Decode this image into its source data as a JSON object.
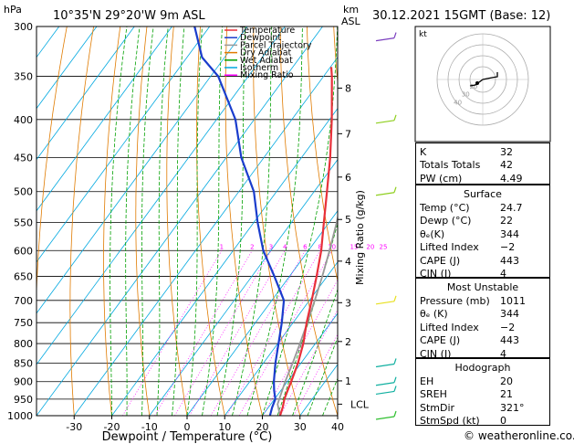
{
  "header": {
    "location": "10°35'N  29°20'W  9m  ASL",
    "datetime": "30.12.2021  15GMT  (Base: 12)",
    "hpa_unit": "hPa",
    "km_unit": "km",
    "asl_unit": "ASL"
  },
  "legend": [
    {
      "label": "Temperature",
      "color": "#e8303a"
    },
    {
      "label": "Dewpoint",
      "color": "#1a3ccc"
    },
    {
      "label": "Parcel Trajectory",
      "color": "#999999"
    },
    {
      "label": "Dry Adiabat",
      "color": "#e07b00"
    },
    {
      "label": "Wet Adiabat",
      "color": "#00a000"
    },
    {
      "label": "Isotherm",
      "color": "#00a8e0"
    },
    {
      "label": "Mixing Ratio",
      "color": "#ff00ff"
    }
  ],
  "chart_data": {
    "type": "line",
    "subtype": "skew-t log-p",
    "xlabel": "Dewpoint / Temperature (°C)",
    "ylabel_right": "Mixing Ratio (g/kg)",
    "pressure_levels": [
      300,
      350,
      400,
      450,
      500,
      550,
      600,
      650,
      700,
      750,
      800,
      850,
      900,
      950,
      1000
    ],
    "temperature_ticks": [
      -30,
      -20,
      -10,
      0,
      10,
      20,
      30,
      40
    ],
    "xlim": [
      -40,
      40
    ],
    "ylim_hpa": [
      300,
      1000
    ],
    "km_ticks": [
      {
        "km": "1",
        "p": 898
      },
      {
        "km": "2",
        "p": 795
      },
      {
        "km": "3",
        "p": 705
      },
      {
        "km": "4",
        "p": 620
      },
      {
        "km": "5",
        "p": 545
      },
      {
        "km": "6",
        "p": 478
      },
      {
        "km": "7",
        "p": 418
      },
      {
        "km": "8",
        "p": 363
      }
    ],
    "lcl_label": "LCL",
    "lcl_p": 965,
    "mixing_ratio_labels": [
      "1",
      "2",
      "3",
      "4",
      "6",
      "8",
      "10",
      "15",
      "20",
      "25"
    ],
    "mixing_ratio_values": [
      1,
      2,
      3,
      4,
      6,
      8,
      10,
      15,
      20,
      25
    ],
    "series": [
      {
        "name": "Temperature",
        "p": [
          1000,
          975,
          950,
          925,
          900,
          850,
          800,
          750,
          700,
          650,
          600,
          550,
          500,
          450,
          400,
          350,
          340
        ],
        "t": [
          24.7,
          23.8,
          22.6,
          21.8,
          21.0,
          19.2,
          16.8,
          13.6,
          10.6,
          7.2,
          3.4,
          -1.4,
          -6.6,
          -12.4,
          -19.4,
          -27.8,
          -29.8
        ]
      },
      {
        "name": "Dewpoint",
        "p": [
          1000,
          975,
          950,
          925,
          900,
          850,
          800,
          750,
          700,
          650,
          600,
          550,
          500,
          450,
          400,
          350,
          330,
          300
        ],
        "t": [
          22.0,
          21.0,
          20.2,
          18.2,
          16.4,
          13.2,
          10.2,
          7.0,
          3.2,
          -4.0,
          -12.0,
          -19.0,
          -26.0,
          -36.0,
          -45.0,
          -58.0,
          -66.0,
          -74.0
        ]
      },
      {
        "name": "Parcel Trajectory",
        "p": [
          1000,
          965,
          900,
          850,
          800,
          750,
          700,
          650,
          600,
          550,
          500,
          450,
          400,
          350,
          340
        ],
        "t": [
          24.7,
          21.8,
          19.4,
          17.8,
          15.9,
          13.8,
          11.4,
          8.7,
          5.6,
          2.0,
          -2.2,
          -7.4,
          -13.8,
          -21.8,
          -23.6
        ]
      }
    ]
  },
  "hodograph": {
    "label": "kt",
    "ring_labels": [
      "40",
      "30",
      "20"
    ]
  },
  "wind_barbs": [
    {
      "p": 310,
      "color": "#7b3fbf"
    },
    {
      "p": 400,
      "color": "#8fcf1f"
    },
    {
      "p": 500,
      "color": "#8fcf1f"
    },
    {
      "p": 700,
      "color": "#e8e020"
    },
    {
      "p": 850,
      "color": "#10b0a0"
    },
    {
      "p": 900,
      "color": "#10b0a0"
    },
    {
      "p": 925,
      "color": "#10b0a0"
    },
    {
      "p": 1000,
      "color": "#30c030"
    }
  ],
  "indices": [
    {
      "label": "K",
      "value": "32"
    },
    {
      "label": "Totals Totals",
      "value": "42"
    },
    {
      "label": "PW (cm)",
      "value": "4.49"
    }
  ],
  "surface": {
    "title": "Surface",
    "rows": [
      {
        "label": "Temp (°C)",
        "value": "24.7"
      },
      {
        "label": "Dewp (°C)",
        "value": "22"
      },
      {
        "label": "θₑ(K)",
        "value": "344"
      },
      {
        "label": "Lifted Index",
        "value": "−2"
      },
      {
        "label": "CAPE (J)",
        "value": "443"
      },
      {
        "label": "CIN (J)",
        "value": "4"
      }
    ]
  },
  "most_unstable": {
    "title": "Most Unstable",
    "rows": [
      {
        "label": "Pressure (mb)",
        "value": "1011"
      },
      {
        "label": "θₑ (K)",
        "value": "344"
      },
      {
        "label": "Lifted Index",
        "value": "−2"
      },
      {
        "label": "CAPE (J)",
        "value": "443"
      },
      {
        "label": "CIN (J)",
        "value": "4"
      }
    ]
  },
  "hodograph_table": {
    "title": "Hodograph",
    "rows": [
      {
        "label": "EH",
        "value": "20"
      },
      {
        "label": "SREH",
        "value": "21"
      },
      {
        "label": "StmDir",
        "value": "321°"
      },
      {
        "label": "StmSpd (kt)",
        "value": "0"
      }
    ]
  },
  "copyright": "© weatheronline.co.uk"
}
